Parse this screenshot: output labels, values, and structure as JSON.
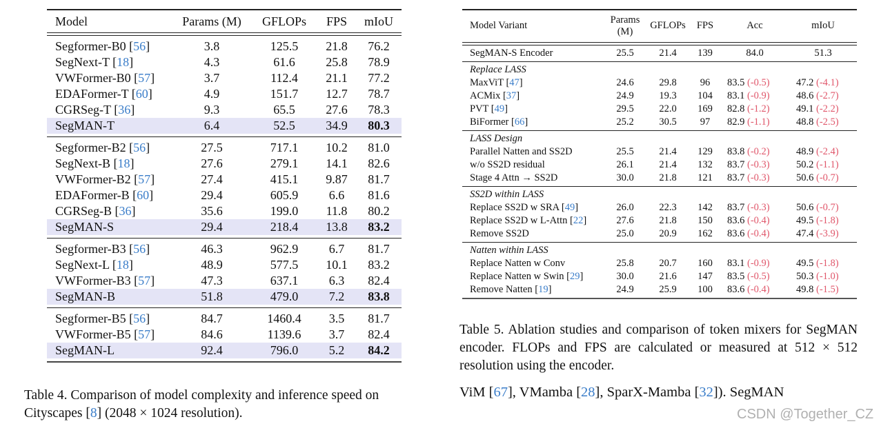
{
  "table4": {
    "headers": [
      "Model",
      "Params (M)",
      "GFLOPs",
      "FPS",
      "mIoU"
    ],
    "groups": [
      [
        {
          "name": "Segformer-B0",
          "ref": "56",
          "params": "3.8",
          "gflops": "125.5",
          "fps": "21.8",
          "miou": "76.2"
        },
        {
          "name": "SegNext-T",
          "ref": "18",
          "params": "4.3",
          "gflops": "61.6",
          "fps": "25.8",
          "miou": "78.9"
        },
        {
          "name": "VWFormer-B0",
          "ref": "57",
          "params": "3.7",
          "gflops": "112.4",
          "fps": "21.1",
          "miou": "77.2"
        },
        {
          "name": "EDAFormer-T",
          "ref": "60",
          "params": "4.9",
          "gflops": "151.7",
          "fps": "12.7",
          "miou": "78.7"
        },
        {
          "name": "CGRSeg-T",
          "ref": "36",
          "params": "9.3",
          "gflops": "65.5",
          "fps": "27.6",
          "miou": "78.3"
        },
        {
          "name": "SegMAN-T",
          "ref": "",
          "params": "6.4",
          "gflops": "52.5",
          "fps": "34.9",
          "miou": "80.3",
          "highlight": true
        }
      ],
      [
        {
          "name": "Segformer-B2",
          "ref": "56",
          "params": "27.5",
          "gflops": "717.1",
          "fps": "10.2",
          "miou": "81.0"
        },
        {
          "name": "SegNext-B",
          "ref": "18",
          "params": "27.6",
          "gflops": "279.1",
          "fps": "14.1",
          "miou": "82.6"
        },
        {
          "name": "VWFormer-B2",
          "ref": "57",
          "params": "27.4",
          "gflops": "415.1",
          "fps": "9.87",
          "miou": "81.7"
        },
        {
          "name": "EDAFormer-B",
          "ref": "60",
          "params": "29.4",
          "gflops": "605.9",
          "fps": "6.6",
          "miou": "81.6"
        },
        {
          "name": "CGRSeg-B",
          "ref": "36",
          "params": "35.6",
          "gflops": "199.0",
          "fps": "11.8",
          "miou": "80.2"
        },
        {
          "name": "SegMAN-S",
          "ref": "",
          "params": "29.4",
          "gflops": "218.4",
          "fps": "13.8",
          "miou": "83.2",
          "highlight": true
        }
      ],
      [
        {
          "name": "Segformer-B3",
          "ref": "56",
          "params": "46.3",
          "gflops": "962.9",
          "fps": "6.7",
          "miou": "81.7"
        },
        {
          "name": "SegNext-L",
          "ref": "18",
          "params": "48.9",
          "gflops": "577.5",
          "fps": "10.1",
          "miou": "83.2"
        },
        {
          "name": "VWFormer-B3",
          "ref": "57",
          "params": "47.3",
          "gflops": "637.1",
          "fps": "6.3",
          "miou": "82.4"
        },
        {
          "name": "SegMAN-B",
          "ref": "",
          "params": "51.8",
          "gflops": "479.0",
          "fps": "7.2",
          "miou": "83.8",
          "highlight": true
        }
      ],
      [
        {
          "name": "Segformer-B5",
          "ref": "56",
          "params": "84.7",
          "gflops": "1460.4",
          "fps": "3.5",
          "miou": "81.7"
        },
        {
          "name": "VWFormer-B5",
          "ref": "57",
          "params": "84.6",
          "gflops": "1139.6",
          "fps": "3.7",
          "miou": "82.4"
        },
        {
          "name": "SegMAN-L",
          "ref": "",
          "params": "92.4",
          "gflops": "796.0",
          "fps": "5.2",
          "miou": "84.2",
          "highlight": true
        }
      ]
    ],
    "caption_parts": [
      "Table 4. Comparison of model complexity and inference speed on Cityscapes [",
      "8",
      "] (2048 × 1024 resolution)."
    ],
    "highlight_color": "#e4e4f6"
  },
  "table5": {
    "headers": [
      "Model Variant",
      "Params (M)",
      "GFLOPs",
      "FPS",
      "Acc",
      "mIoU"
    ],
    "baseline": {
      "name": "SegMAN-S Encoder",
      "params": "25.5",
      "gflops": "21.4",
      "fps": "139",
      "acc": "84.0",
      "miou": "51.3"
    },
    "sections": [
      {
        "title": "Replace LASS",
        "rows": [
          {
            "name": "MaxViT",
            "ref": "47",
            "params": "24.6",
            "gflops": "29.8",
            "fps": "96",
            "acc": "83.5",
            "acc_d": "(-0.5)",
            "miou": "47.2",
            "miou_d": "(-4.1)"
          },
          {
            "name": "ACMix",
            "ref": "37",
            "params": "24.9",
            "gflops": "19.3",
            "fps": "104",
            "acc": "83.1",
            "acc_d": "(-0.9)",
            "miou": "48.6",
            "miou_d": "(-2.7)"
          },
          {
            "name": "PVT",
            "ref": "49",
            "params": "29.5",
            "gflops": "22.0",
            "fps": "169",
            "acc": "82.8",
            "acc_d": "(-1.2)",
            "miou": "49.1",
            "miou_d": "(-2.2)"
          },
          {
            "name": "BiFormer",
            "ref": "66",
            "params": "25.2",
            "gflops": "30.5",
            "fps": "97",
            "acc": "82.9",
            "acc_d": "(-1.1)",
            "miou": "48.8",
            "miou_d": "(-2.5)"
          }
        ]
      },
      {
        "title": "LASS Design",
        "rows": [
          {
            "name": "Parallel Natten and SS2D",
            "ref": "",
            "params": "25.5",
            "gflops": "21.4",
            "fps": "129",
            "acc": "83.8",
            "acc_d": "(-0.2)",
            "miou": "48.9",
            "miou_d": "(-2.4)"
          },
          {
            "name": "w/o SS2D residual",
            "ref": "",
            "params": "26.1",
            "gflops": "21.4",
            "fps": "132",
            "acc": "83.7",
            "acc_d": "(-0.3)",
            "miou": "50.2",
            "miou_d": "(-1.1)"
          },
          {
            "name": "Stage 4 Attn → SS2D",
            "ref": "",
            "params": "30.0",
            "gflops": "21.8",
            "fps": "121",
            "acc": "83.7",
            "acc_d": "(-0.3)",
            "miou": "50.6",
            "miou_d": "(-0.7)"
          }
        ]
      },
      {
        "title": "SS2D within LASS",
        "rows": [
          {
            "name": "Replace SS2D w SRA",
            "ref": "49",
            "params": "26.0",
            "gflops": "22.3",
            "fps": "142",
            "acc": "83.7",
            "acc_d": "(-0.3)",
            "miou": "50.6",
            "miou_d": "(-0.7)"
          },
          {
            "name": "Replace SS2D w L-Attn",
            "ref": "22",
            "params": "27.6",
            "gflops": "21.8",
            "fps": "150",
            "acc": "83.6",
            "acc_d": "(-0.4)",
            "miou": "49.5",
            "miou_d": "(-1.8)"
          },
          {
            "name": "Remove SS2D",
            "ref": "",
            "params": "25.0",
            "gflops": "20.9",
            "fps": "162",
            "acc": "83.6",
            "acc_d": "(-0.4)",
            "miou": "47.4",
            "miou_d": "(-3.9)"
          }
        ]
      },
      {
        "title": "Natten within LASS",
        "rows": [
          {
            "name": "Replace Natten w Conv",
            "ref": "",
            "params": "25.8",
            "gflops": "20.7",
            "fps": "160",
            "acc": "83.1",
            "acc_d": "(-0.9)",
            "miou": "49.5",
            "miou_d": "(-1.8)"
          },
          {
            "name": "Replace Natten w Swin",
            "ref": "29",
            "params": "30.0",
            "gflops": "21.6",
            "fps": "147",
            "acc": "83.5",
            "acc_d": "(-0.5)",
            "miou": "50.3",
            "miou_d": "(-1.0)"
          },
          {
            "name": "Remove Natten",
            "ref": "19",
            "params": "24.9",
            "gflops": "25.9",
            "fps": "100",
            "acc": "83.6",
            "acc_d": "(-0.4)",
            "miou": "49.8",
            "miou_d": "(-1.5)"
          }
        ]
      }
    ],
    "caption": "Table 5.  Ablation studies and comparison of token mixers for SegMAN encoder.  FLOPs and FPS are calculated or measured at 512 × 512 resolution using the encoder.",
    "delta_color": "#e0566a"
  },
  "body_text_parts": [
    "ViM [",
    "67",
    "], VMamba [",
    "28",
    "], SparX-Mamba [",
    "32",
    "]).  SegMAN"
  ],
  "watermark": "CSDN @Together_CZ",
  "ref_color": "#3a7dc9"
}
